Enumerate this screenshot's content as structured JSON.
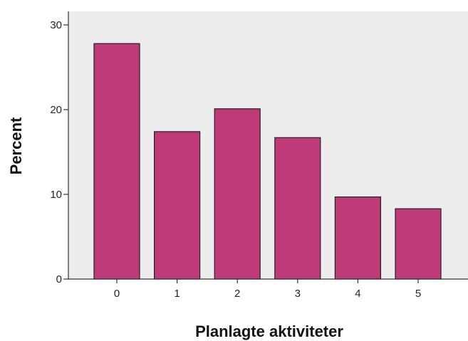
{
  "chart_data": {
    "type": "bar",
    "categories": [
      "0",
      "1",
      "2",
      "3",
      "4",
      "5"
    ],
    "values": [
      27.8,
      17.4,
      20.1,
      16.7,
      9.7,
      8.3
    ],
    "xlabel": "Planlagte aktiviteter",
    "ylabel": "Percent",
    "ylim": [
      0,
      30
    ],
    "yticks": [
      0,
      10,
      20,
      30
    ],
    "grid": false,
    "colors": {
      "bar_fill": "#BE3A78",
      "bar_stroke": "#222222",
      "plot_background": "#EDEDED",
      "axis": "#333333"
    }
  }
}
